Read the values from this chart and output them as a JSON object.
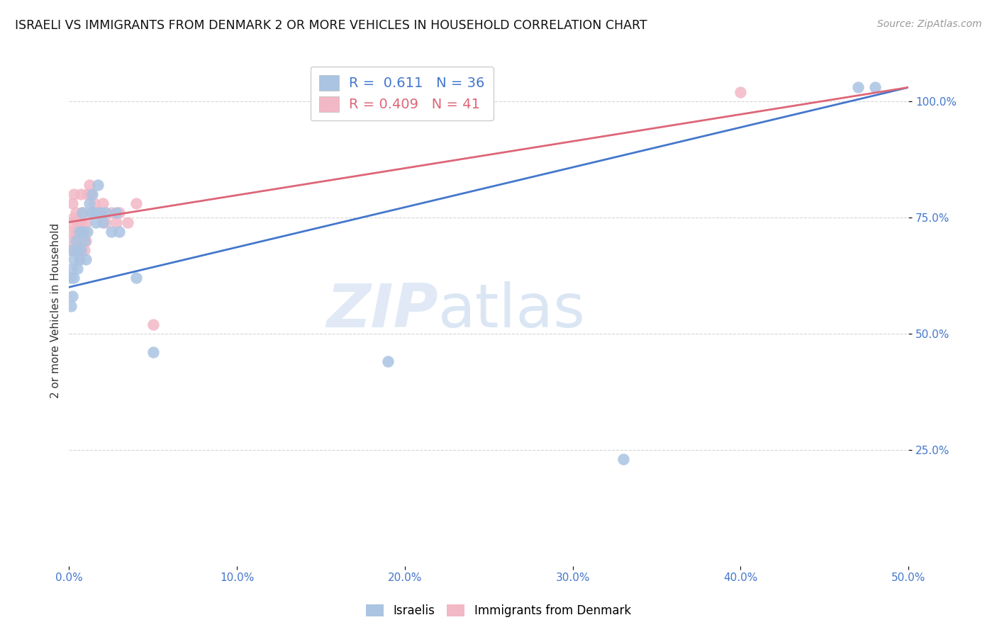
{
  "title": "ISRAELI VS IMMIGRANTS FROM DENMARK 2 OR MORE VEHICLES IN HOUSEHOLD CORRELATION CHART",
  "source": "Source: ZipAtlas.com",
  "ylabel": "2 or more Vehicles in Household",
  "xlim": [
    0.0,
    0.5
  ],
  "ylim": [
    0.0,
    1.1
  ],
  "xticks": [
    0.0,
    0.1,
    0.2,
    0.3,
    0.4,
    0.5
  ],
  "xtick_labels": [
    "0.0%",
    "10.0%",
    "20.0%",
    "30.0%",
    "40.0%",
    "50.0%"
  ],
  "yticks": [
    0.25,
    0.5,
    0.75,
    1.0
  ],
  "ytick_labels": [
    "25.0%",
    "50.0%",
    "75.0%",
    "100.0%"
  ],
  "blue_R": 0.611,
  "blue_N": 36,
  "pink_R": 0.409,
  "pink_N": 41,
  "blue_color": "#aac4e2",
  "pink_color": "#f2b8c6",
  "blue_line_color": "#4477cc",
  "pink_line_color": "#dd6677",
  "background_color": "#ffffff",
  "grid_color": "#cccccc",
  "watermark_zip": "ZIP",
  "watermark_atlas": "atlas",
  "legend_label_blue": "Israelis",
  "legend_label_pink": "Immigrants from Denmark",
  "blue_x": [
    0.001,
    0.001,
    0.002,
    0.002,
    0.002,
    0.003,
    0.003,
    0.004,
    0.005,
    0.005,
    0.006,
    0.006,
    0.007,
    0.008,
    0.008,
    0.009,
    0.01,
    0.011,
    0.012,
    0.013,
    0.014,
    0.015,
    0.016,
    0.017,
    0.019,
    0.02,
    0.022,
    0.025,
    0.028,
    0.03,
    0.04,
    0.05,
    0.19,
    0.33,
    0.47,
    0.48
  ],
  "blue_y": [
    0.56,
    0.62,
    0.58,
    0.64,
    0.68,
    0.62,
    0.66,
    0.7,
    0.64,
    0.68,
    0.72,
    0.66,
    0.68,
    0.72,
    0.76,
    0.7,
    0.66,
    0.72,
    0.78,
    0.76,
    0.8,
    0.76,
    0.74,
    0.82,
    0.76,
    0.74,
    0.76,
    0.72,
    0.76,
    0.72,
    0.62,
    0.46,
    0.44,
    0.23,
    1.03,
    1.03
  ],
  "pink_x": [
    0.001,
    0.001,
    0.002,
    0.002,
    0.002,
    0.003,
    0.003,
    0.003,
    0.004,
    0.004,
    0.005,
    0.005,
    0.006,
    0.006,
    0.007,
    0.007,
    0.007,
    0.008,
    0.008,
    0.009,
    0.009,
    0.01,
    0.01,
    0.011,
    0.012,
    0.013,
    0.014,
    0.015,
    0.016,
    0.017,
    0.018,
    0.02,
    0.022,
    0.025,
    0.028,
    0.03,
    0.035,
    0.04,
    0.05,
    0.19,
    0.4
  ],
  "pink_y": [
    0.68,
    0.72,
    0.7,
    0.74,
    0.78,
    0.75,
    0.8,
    0.68,
    0.72,
    0.76,
    0.7,
    0.74,
    0.66,
    0.72,
    0.68,
    0.74,
    0.8,
    0.7,
    0.76,
    0.72,
    0.68,
    0.74,
    0.7,
    0.8,
    0.82,
    0.8,
    0.76,
    0.78,
    0.76,
    0.76,
    0.76,
    0.78,
    0.74,
    0.76,
    0.74,
    0.76,
    0.74,
    0.78,
    0.52,
    1.03,
    1.02
  ],
  "blue_line_x0": 0.0,
  "blue_line_y0": 0.6,
  "blue_line_x1": 0.5,
  "blue_line_y1": 1.03,
  "pink_line_x0": 0.0,
  "pink_line_y0": 0.74,
  "pink_line_x1": 0.5,
  "pink_line_y1": 1.03
}
